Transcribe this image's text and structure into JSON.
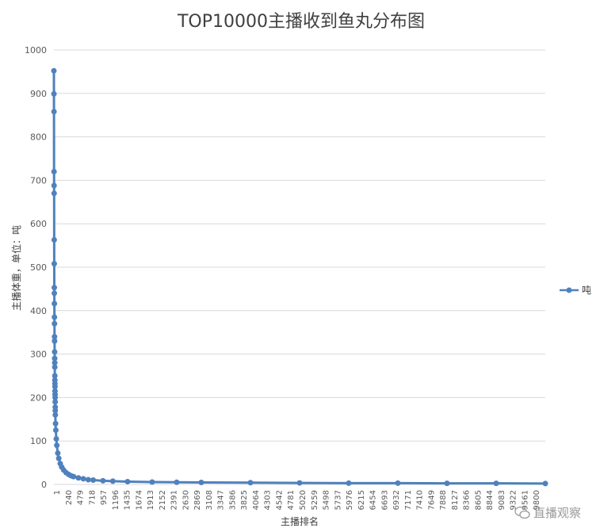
{
  "chart_data": {
    "type": "line",
    "title": "TOP10000主播收到鱼丸分布图",
    "ylabel": "主播体重，单位：吨",
    "xlabel": "主播排名",
    "ylim": [
      0,
      1000
    ],
    "yticks": [
      0,
      100,
      200,
      300,
      400,
      500,
      600,
      700,
      800,
      900,
      1000
    ],
    "x_tick_labels": [
      "1",
      "240",
      "479",
      "718",
      "957",
      "1196",
      "1435",
      "1674",
      "1913",
      "2152",
      "2391",
      "2630",
      "2869",
      "3108",
      "3347",
      "3586",
      "3825",
      "4064",
      "4303",
      "4542",
      "4781",
      "5020",
      "5259",
      "5498",
      "5737",
      "5976",
      "6215",
      "6454",
      "6693",
      "6932",
      "7171",
      "7410",
      "7649",
      "7888",
      "8127",
      "8366",
      "8605",
      "8844",
      "9083",
      "9322",
      "9561",
      "9800"
    ],
    "xlim": [
      1,
      10000
    ],
    "grid": true,
    "legend_position": "right",
    "series": [
      {
        "name": "吨",
        "color": "#4f81bd",
        "x": [
          1,
          2,
          3,
          4,
          5,
          6,
          7,
          8,
          9,
          10,
          11,
          12,
          13,
          14,
          15,
          16,
          17,
          18,
          19,
          20,
          21,
          22,
          23,
          24,
          25,
          26,
          27,
          28,
          29,
          30,
          35,
          40,
          50,
          60,
          80,
          100,
          130,
          160,
          200,
          250,
          300,
          350,
          400,
          500,
          600,
          700,
          800,
          1000,
          1200,
          1500,
          2000,
          2500,
          3000,
          4000,
          5000,
          6000,
          7000,
          8000,
          9000,
          10000
        ],
        "values": [
          952,
          899,
          858,
          720,
          688,
          670,
          563,
          508,
          453,
          440,
          416,
          385,
          370,
          340,
          330,
          305,
          290,
          280,
          270,
          250,
          240,
          232,
          225,
          215,
          207,
          200,
          190,
          178,
          170,
          160,
          140,
          125,
          105,
          90,
          72,
          60,
          48,
          40,
          33,
          27,
          23,
          20,
          18,
          15,
          13,
          11,
          10,
          8.5,
          7.5,
          6.5,
          5.5,
          5,
          4.5,
          4,
          3.5,
          3,
          3,
          2.5,
          2.5,
          2
        ]
      }
    ]
  },
  "watermark": {
    "text": "直播观察"
  }
}
